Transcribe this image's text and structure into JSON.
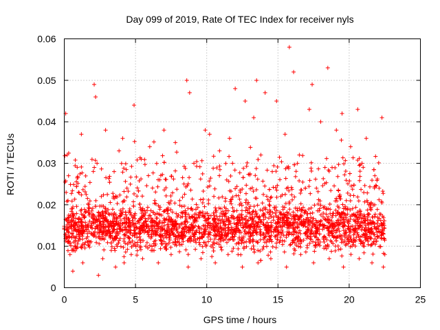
{
  "chart_data": {
    "type": "scatter",
    "title": "Day 099 of 2019, Rate Of TEC Index for receiver nyls",
    "xlabel": "GPS time / hours",
    "ylabel": "ROTI / TECUs",
    "xlim": [
      0,
      25
    ],
    "ylim": [
      0,
      0.06
    ],
    "xticks": [
      0,
      5,
      10,
      15,
      20,
      25
    ],
    "xtick_labels": [
      "0",
      "5",
      "10",
      "15",
      "20",
      "25"
    ],
    "yticks": [
      0,
      0.01,
      0.02,
      0.03,
      0.04,
      0.05,
      0.06
    ],
    "ytick_labels": [
      "0",
      "0.01",
      "0.02",
      "0.03",
      "0.04",
      "0.05",
      "0.06"
    ],
    "grid": true,
    "marker": "+",
    "color": "#ff0000",
    "series": [
      {
        "name": "ROTI",
        "x": [
          0.1,
          0.2,
          0.3,
          0.5,
          0.8,
          1.0,
          1.2,
          1.5,
          1.8,
          2.1,
          2.2,
          2.3,
          2.6,
          2.9,
          3.1,
          3.3,
          3.5,
          3.8,
          4.1,
          4.4,
          4.6,
          4.9,
          5.1,
          5.4,
          5.7,
          6.0,
          6.3,
          6.7,
          7.0,
          7.4,
          7.8,
          8.1,
          8.4,
          8.6,
          8.8,
          9.1,
          9.5,
          9.9,
          10.2,
          10.5,
          10.9,
          11.2,
          11.6,
          12.0,
          12.3,
          12.7,
          13.0,
          13.3,
          13.5,
          13.8,
          14.1,
          14.4,
          14.6,
          14.9,
          15.2,
          15.5,
          15.8,
          16.1,
          16.5,
          16.8,
          17.2,
          17.4,
          17.7,
          18.0,
          18.3,
          18.5,
          18.8,
          19.1,
          19.5,
          19.8,
          20.1,
          20.4,
          20.6,
          20.9,
          21.2,
          21.5,
          21.8,
          22.1,
          22.3,
          22.5,
          0.4,
          1.3,
          2.7,
          3.6,
          4.7,
          5.5,
          6.6,
          7.5,
          8.7,
          9.6,
          10.6,
          11.5,
          12.5,
          13.6,
          14.5,
          15.6,
          16.6,
          17.5,
          18.6,
          19.6,
          20.7,
          21.6,
          22.4,
          0.6,
          2.4,
          4.2,
          6.2,
          8.3,
          10.3,
          12.2,
          14.2,
          16.2,
          18.2,
          20.2
        ],
        "values": [
          0.042,
          0.032,
          0.027,
          0.019,
          0.012,
          0.023,
          0.037,
          0.015,
          0.011,
          0.049,
          0.046,
          0.03,
          0.022,
          0.038,
          0.016,
          0.009,
          0.028,
          0.013,
          0.036,
          0.024,
          0.019,
          0.044,
          0.013,
          0.031,
          0.018,
          0.034,
          0.015,
          0.026,
          0.038,
          0.012,
          0.035,
          0.021,
          0.025,
          0.05,
          0.047,
          0.03,
          0.017,
          0.038,
          0.037,
          0.022,
          0.033,
          0.014,
          0.036,
          0.048,
          0.02,
          0.045,
          0.011,
          0.041,
          0.05,
          0.032,
          0.047,
          0.018,
          0.028,
          0.045,
          0.022,
          0.037,
          0.058,
          0.052,
          0.032,
          0.015,
          0.043,
          0.049,
          0.024,
          0.04,
          0.029,
          0.053,
          0.017,
          0.038,
          0.042,
          0.021,
          0.034,
          0.016,
          0.043,
          0.03,
          0.036,
          0.019,
          0.027,
          0.024,
          0.041,
          0.008,
          0.008,
          0.006,
          0.007,
          0.005,
          0.008,
          0.007,
          0.006,
          0.008,
          0.005,
          0.007,
          0.006,
          0.008,
          0.005,
          0.006,
          0.007,
          0.005,
          0.008,
          0.006,
          0.007,
          0.005,
          0.007,
          0.006,
          0.005,
          0.004,
          0.003,
          0.006,
          0.009,
          0.012,
          0.01,
          0.008,
          0.011,
          0.009,
          0.012,
          0.01
        ]
      }
    ]
  }
}
